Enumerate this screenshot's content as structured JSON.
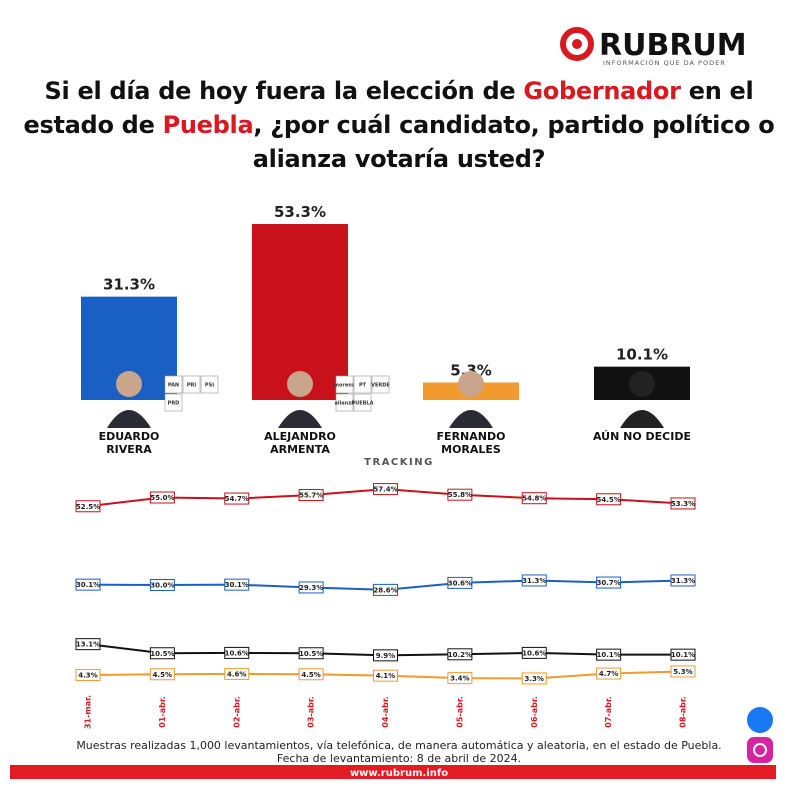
{
  "brand": {
    "name": "RUBRUM",
    "tagline": "INFORMACIÓN QUE DA PODER"
  },
  "title": [
    {
      "text": "Si el día de hoy fuera la elección de ",
      "color": "#111111"
    },
    {
      "text": "Gobernador",
      "color": "#d71920"
    },
    {
      "text": " en el estado de ",
      "color": "#111111"
    },
    {
      "text": "Puebla",
      "color": "#d71920"
    },
    {
      "text": ", ¿por cuál candidato, partido político o alianza votaría usted?",
      "color": "#111111"
    }
  ],
  "chart_data": [
    {
      "type": "bar",
      "categories": [
        "EDUARDO RIVERA",
        "ALEJANDRO ARMENTA",
        "FERNANDO MORALES",
        "AÚN NO DECIDE"
      ],
      "values": [
        31.3,
        53.3,
        5.3,
        10.1
      ],
      "value_labels": [
        "31.3%",
        "53.3%",
        "5.3%",
        "10.1%"
      ],
      "colors": [
        "#1a5fc4",
        "#c8111a",
        "#f39a2e",
        "#111111"
      ],
      "party_logos": [
        [
          "PAN",
          "PRI",
          "PSI",
          "PRD"
        ],
        [
          "morena",
          "PT",
          "VERDE",
          "alianza",
          "PUEBLA"
        ],
        [],
        []
      ]
    },
    {
      "type": "line",
      "title": "TRACKING",
      "x": [
        "31-mar.",
        "01-abr.",
        "02-abr.",
        "03-abr.",
        "04-abr.",
        "05-abr.",
        "06-abr.",
        "07-abr.",
        "08-abr."
      ],
      "series": [
        {
          "color": "#c8111a",
          "values": [
            52.5,
            55.0,
            54.7,
            55.7,
            57.4,
            55.8,
            54.8,
            54.5,
            53.3
          ],
          "value_labels": [
            "52.5%",
            "55.0%",
            "54.7%",
            "55.7%",
            "57.4%",
            "55.8%",
            "54.8%",
            "54.5%",
            "53.3%"
          ]
        },
        {
          "color": "#1a5fc4",
          "values": [
            30.1,
            30.0,
            30.1,
            29.3,
            28.6,
            30.6,
            31.3,
            30.7,
            31.3
          ],
          "value_labels": [
            "30.1%",
            "30.0%",
            "30.1%",
            "29.3%",
            "28.6%",
            "30.6%",
            "31.3%",
            "30.7%",
            "31.3%"
          ]
        },
        {
          "color": "#111111",
          "values": [
            13.1,
            10.5,
            10.6,
            10.5,
            9.9,
            10.2,
            10.6,
            10.1,
            10.1
          ],
          "value_labels": [
            "13.1%",
            "10.5%",
            "10.6%",
            "10.5%",
            "9.9%",
            "10.2%",
            "10.6%",
            "10.1%",
            "10.1%"
          ]
        },
        {
          "color": "#f39a2e",
          "values": [
            4.3,
            4.5,
            4.6,
            4.5,
            4.1,
            3.4,
            3.3,
            4.7,
            5.3
          ],
          "value_labels": [
            "4.3%",
            "4.5%",
            "4.6%",
            "4.5%",
            "4.1%",
            "3.4%",
            "3.3%",
            "4.7%",
            "5.3%"
          ]
        }
      ]
    }
  ],
  "footer": {
    "notes": [
      "Muestras realizadas 1,000 levantamientos, vía telefónica, de manera automática y aleatoria, en el estado de Puebla.",
      "Fecha de levantamiento: 8 de abril de 2024."
    ],
    "website": "www.rubrum.info"
  }
}
